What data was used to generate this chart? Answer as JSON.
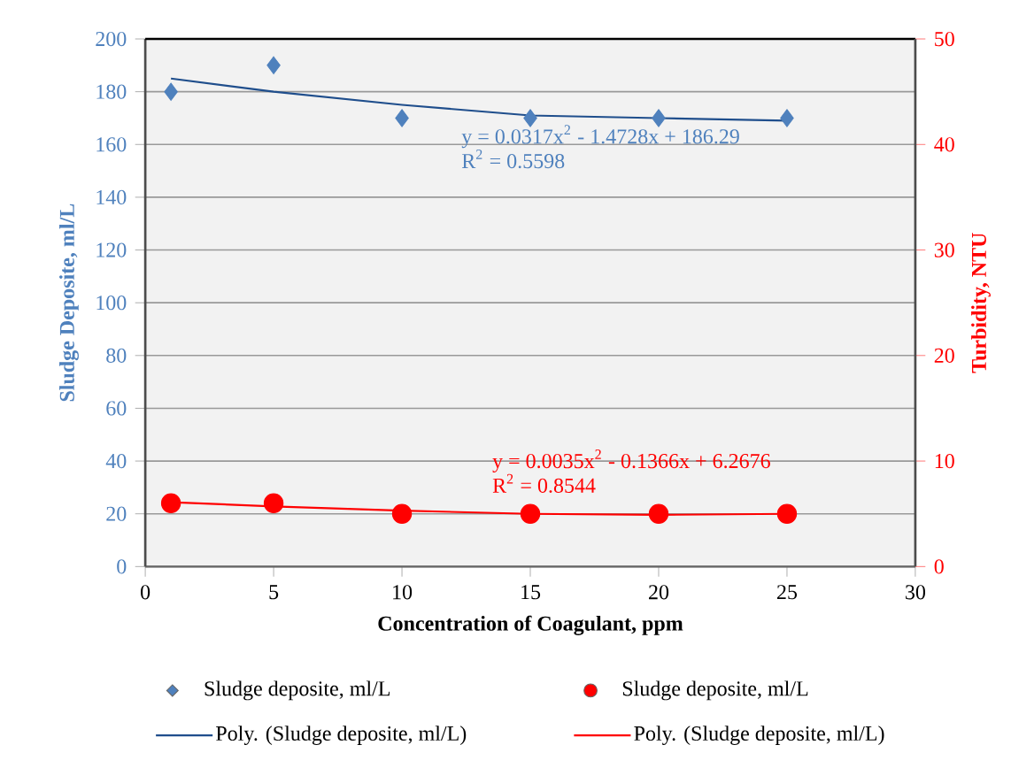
{
  "chart_data": {
    "type": "scatter",
    "xlabel": "Concentration of Coagulant, ppm",
    "ylabel": "Sludge Deposite, ml/L",
    "y2label": "Turbidity, NTU",
    "x": [
      1,
      5,
      10,
      15,
      20,
      25
    ],
    "series": [
      {
        "name": "Sludge deposite, ml/L",
        "marker": "diamond",
        "color": "#4f81bd",
        "values": [
          180,
          190,
          170,
          170,
          170,
          170
        ]
      },
      {
        "name": "Sludge deposite, ml/L",
        "marker": "circle",
        "color": "#ff0000",
        "axis": "y2",
        "values": [
          6,
          6,
          5,
          5,
          5,
          5
        ]
      },
      {
        "name": "Poly. (Sludge deposite, ml/L)",
        "type": "line",
        "color": "#1f4e8c",
        "values": [
          185,
          180,
          175,
          171,
          170,
          169
        ]
      },
      {
        "name": "Poly. (Sludge deposite, ml/L)",
        "type": "line",
        "color": "#ff0000",
        "axis": "y2",
        "values": [
          6.1,
          5.7,
          5.3,
          5.0,
          4.9,
          5.0
        ]
      }
    ],
    "xlim": [
      0,
      30
    ],
    "xticks": [
      0,
      5,
      10,
      15,
      20,
      25,
      30
    ],
    "ylim": [
      0,
      200
    ],
    "yticks": [
      0,
      20,
      40,
      60,
      80,
      100,
      120,
      140,
      160,
      180,
      200
    ],
    "y2lim": [
      0,
      50
    ],
    "y2ticks": [
      0,
      10,
      20,
      30,
      40,
      50
    ],
    "grid": "y",
    "legend": "bottom",
    "annotations": [
      "y = 0.0317x$^{2}$ - 1.4728x + 186.29",
      "R$^{2}$ = 0.5598",
      "y = 0.0035x$^{2}$ - 0.1366x + 6.2676",
      "R$^{2}$ = 0.8544"
    ]
  }
}
